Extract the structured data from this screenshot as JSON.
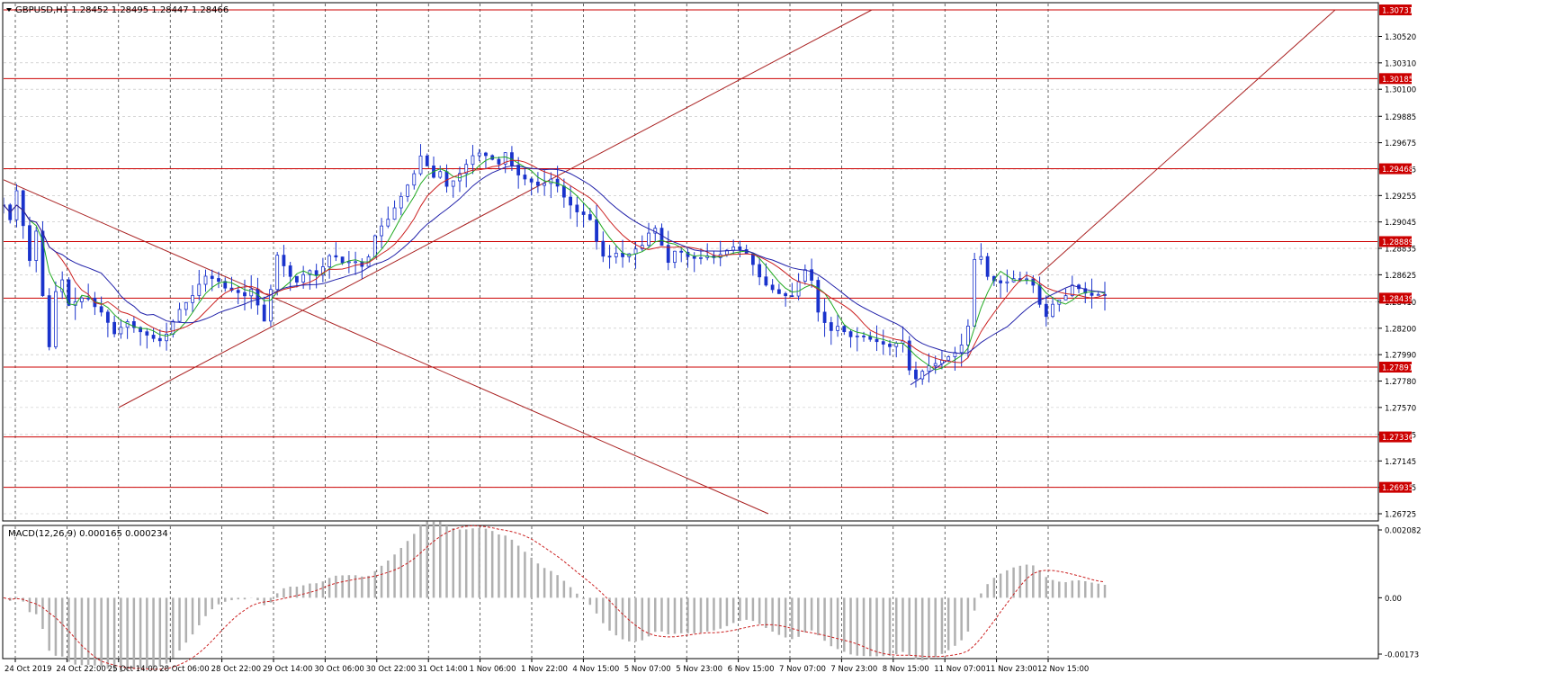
{
  "chart_data": [
    {
      "type": "candlestick",
      "title": "GBPUSD,H1 1.28452 1.28495 1.28447 1.28466",
      "symbol": "GBPUSD",
      "timeframe": "H1",
      "ohlc_last": {
        "open": 1.28452,
        "high": 1.28495,
        "low": 1.28447,
        "close": 1.28466
      },
      "ylim": [
        1.26725,
        1.30731
      ],
      "price_ticks": [
        "1.30520",
        "1.30310",
        "1.30100",
        "1.29885",
        "1.29675",
        "1.29465",
        "1.29255",
        "1.29045",
        "1.28835",
        "1.28625",
        "1.28410",
        "1.28200",
        "1.27990",
        "1.27780",
        "1.27570",
        "1.27355",
        "1.27145",
        "1.26935",
        "1.26725"
      ],
      "time_ticks": [
        "24 Oct 2019",
        "24 Oct 22:00",
        "25 Oct 14:00",
        "28 Oct 06:00",
        "28 Oct 22:00",
        "29 Oct 14:00",
        "30 Oct 06:00",
        "30 Oct 22:00",
        "31 Oct 14:00",
        "1 Nov 06:00",
        "1 Nov 22:00",
        "4 Nov 15:00",
        "5 Nov 07:00",
        "5 Nov 23:00",
        "6 Nov 15:00",
        "7 Nov 07:00",
        "7 Nov 23:00",
        "8 Nov 15:00",
        "11 Nov 07:00",
        "11 Nov 23:00",
        "12 Nov 15:00"
      ],
      "grid": true,
      "horizontal_levels": [
        "1.30731",
        "1.30185",
        "1.29468",
        "1.28889",
        "1.28439",
        "1.27891",
        "1.27336",
        "1.26935"
      ],
      "level_color": "#cc0000",
      "close_path": [
        [
          0,
          1.2918
        ],
        [
          8,
          1.2905
        ],
        [
          16,
          1.2935
        ],
        [
          22,
          1.29
        ],
        [
          30,
          1.287
        ],
        [
          38,
          1.2905
        ],
        [
          44,
          1.284
        ],
        [
          50,
          1.28
        ],
        [
          56,
          1.2845
        ],
        [
          64,
          1.2862
        ],
        [
          72,
          1.2838
        ],
        [
          82,
          1.2842
        ],
        [
          92,
          1.2846
        ],
        [
          100,
          1.2838
        ],
        [
          110,
          1.2832
        ],
        [
          118,
          1.2822
        ],
        [
          126,
          1.2812
        ],
        [
          134,
          1.2828
        ],
        [
          142,
          1.2822
        ],
        [
          150,
          1.2818
        ],
        [
          158,
          1.2815
        ],
        [
          166,
          1.2812
        ],
        [
          174,
          1.281
        ],
        [
          182,
          1.2816
        ],
        [
          190,
          1.2828
        ],
        [
          198,
          1.2838
        ],
        [
          206,
          1.2842
        ],
        [
          214,
          1.285
        ],
        [
          222,
          1.2862
        ],
        [
          230,
          1.286
        ],
        [
          238,
          1.2858
        ],
        [
          246,
          1.2852
        ],
        [
          254,
          1.285
        ],
        [
          262,
          1.2848
        ],
        [
          270,
          1.2845
        ],
        [
          276,
          1.2852
        ],
        [
          282,
          1.284
        ],
        [
          288,
          1.282
        ],
        [
          294,
          1.284
        ],
        [
          300,
          1.2862
        ],
        [
          306,
          1.2885
        ],
        [
          312,
          1.2868
        ],
        [
          318,
          1.2862
        ],
        [
          324,
          1.2855
        ],
        [
          332,
          1.2862
        ],
        [
          340,
          1.2866
        ],
        [
          348,
          1.2862
        ],
        [
          356,
          1.287
        ],
        [
          364,
          1.288
        ],
        [
          372,
          1.2875
        ],
        [
          380,
          1.287
        ],
        [
          388,
          1.2876
        ],
        [
          396,
          1.2868
        ],
        [
          404,
          1.2872
        ],
        [
          410,
          1.289
        ],
        [
          418,
          1.29
        ],
        [
          426,
          1.2905
        ],
        [
          434,
          1.2915
        ],
        [
          442,
          1.2925
        ],
        [
          450,
          1.2935
        ],
        [
          458,
          1.2945
        ],
        [
          464,
          1.2958
        ],
        [
          470,
          1.295
        ],
        [
          478,
          1.294
        ],
        [
          486,
          1.2945
        ],
        [
          494,
          1.293
        ],
        [
          502,
          1.294
        ],
        [
          510,
          1.2945
        ],
        [
          518,
          1.2955
        ],
        [
          526,
          1.296
        ],
        [
          534,
          1.2958
        ],
        [
          542,
          1.2955
        ],
        [
          550,
          1.295
        ],
        [
          558,
          1.296
        ],
        [
          566,
          1.2948
        ],
        [
          574,
          1.294
        ],
        [
          582,
          1.2938
        ],
        [
          590,
          1.2935
        ],
        [
          598,
          1.2932
        ],
        [
          606,
          1.294
        ],
        [
          614,
          1.2935
        ],
        [
          622,
          1.2925
        ],
        [
          630,
          1.2918
        ],
        [
          638,
          1.2912
        ],
        [
          646,
          1.291
        ],
        [
          654,
          1.2905
        ],
        [
          662,
          1.288
        ],
        [
          670,
          1.2875
        ],
        [
          680,
          1.288
        ],
        [
          690,
          1.2876
        ],
        [
          700,
          1.2882
        ],
        [
          710,
          1.2886
        ],
        [
          716,
          1.2895
        ],
        [
          724,
          1.29
        ],
        [
          732,
          1.2885
        ],
        [
          740,
          1.287
        ],
        [
          748,
          1.2885
        ],
        [
          756,
          1.2878
        ],
        [
          764,
          1.2876
        ],
        [
          772,
          1.2875
        ],
        [
          780,
          1.2878
        ],
        [
          790,
          1.2876
        ],
        [
          800,
          1.288
        ],
        [
          810,
          1.2885
        ],
        [
          820,
          1.2882
        ],
        [
          828,
          1.2878
        ],
        [
          836,
          1.2866
        ],
        [
          844,
          1.2856
        ],
        [
          852,
          1.2852
        ],
        [
          860,
          1.2848
        ],
        [
          868,
          1.2846
        ],
        [
          876,
          1.2845
        ],
        [
          884,
          1.2858
        ],
        [
          892,
          1.2868
        ],
        [
          900,
          1.2855
        ],
        [
          906,
          1.283
        ],
        [
          912,
          1.2825
        ],
        [
          920,
          1.2818
        ],
        [
          928,
          1.2822
        ],
        [
          936,
          1.2816
        ],
        [
          944,
          1.2812
        ],
        [
          952,
          1.2815
        ],
        [
          960,
          1.2812
        ],
        [
          968,
          1.281
        ],
        [
          976,
          1.2808
        ],
        [
          984,
          1.2805
        ],
        [
          992,
          1.2808
        ],
        [
          1000,
          1.281
        ],
        [
          1006,
          1.2788
        ],
        [
          1012,
          1.2778
        ],
        [
          1020,
          1.2785
        ],
        [
          1028,
          1.279
        ],
        [
          1036,
          1.2792
        ],
        [
          1044,
          1.2795
        ],
        [
          1052,
          1.2798
        ],
        [
          1060,
          1.2802
        ],
        [
          1068,
          1.281
        ],
        [
          1072,
          1.2822
        ],
        [
          1076,
          1.2855
        ],
        [
          1080,
          1.288
        ],
        [
          1086,
          1.2878
        ],
        [
          1092,
          1.2862
        ],
        [
          1100,
          1.2858
        ],
        [
          1108,
          1.2856
        ],
        [
          1116,
          1.2857
        ],
        [
          1124,
          1.286
        ],
        [
          1132,
          1.2858
        ],
        [
          1140,
          1.286
        ],
        [
          1146,
          1.2852
        ],
        [
          1152,
          1.2838
        ],
        [
          1158,
          1.2828
        ],
        [
          1164,
          1.2838
        ],
        [
          1172,
          1.2842
        ],
        [
          1180,
          1.2845
        ],
        [
          1186,
          1.2855
        ],
        [
          1194,
          1.2852
        ],
        [
          1202,
          1.2848
        ],
        [
          1210,
          1.2846
        ],
        [
          1218,
          1.2847
        ],
        [
          1224,
          1.2846
        ]
      ],
      "close_series_points": 170,
      "moving_averages": [
        {
          "color": "#22aa22",
          "period": 8
        },
        {
          "color": "#cc2222",
          "period": 14
        },
        {
          "color": "#2222aa",
          "period": 26
        }
      ],
      "trendlines": [
        {
          "from": [
            0,
            1.2938
          ],
          "to": [
            850,
            1.26725
          ],
          "color": "#aa2222"
        },
        {
          "from": [
            128,
            1.2757
          ],
          "to": [
            965,
            1.30731
          ],
          "color": "#aa2222"
        },
        {
          "from": [
            1150,
            1.2862
          ],
          "to": [
            1480,
            1.30731
          ],
          "color": "#aa2222"
        },
        {
          "from": [
            1008,
            1.2775
          ],
          "to": [
            1048,
            1.2794
          ],
          "color": "#2222aa"
        }
      ]
    },
    {
      "type": "bar",
      "title": "MACD(12,26,9) 0.000165 0.000234",
      "ylim": [
        -0.00173,
        0.002082
      ],
      "y_ticks": [
        "0.002082",
        "0.00",
        "-0.00173"
      ],
      "histogram_color": "#b0b0b0",
      "signal_color": "#cc2222",
      "grid": true
    }
  ]
}
